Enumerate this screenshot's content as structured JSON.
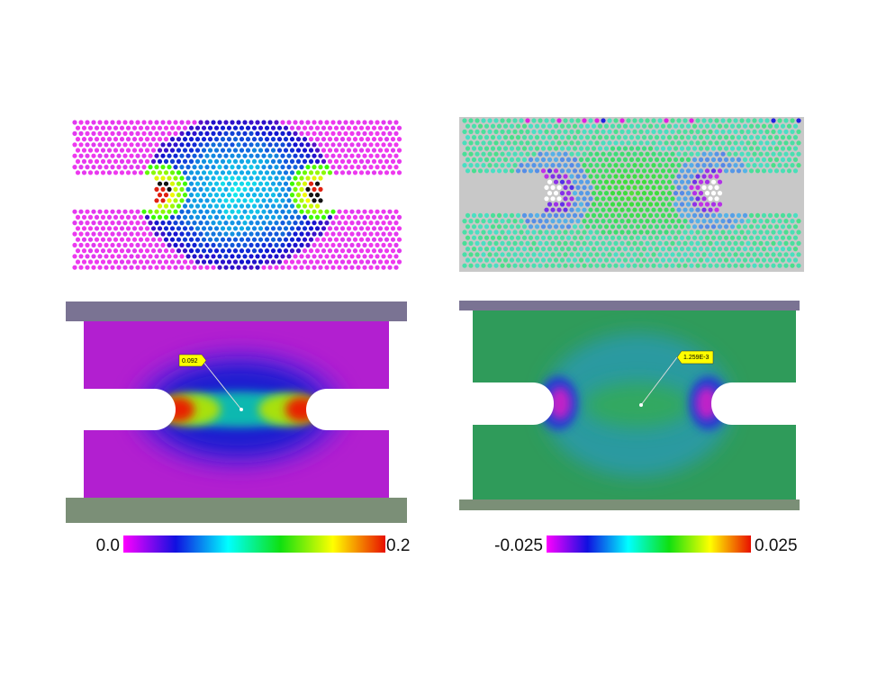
{
  "panels": [
    {
      "annotation": "0.092"
    },
    {
      "annotation": "1.259E-3"
    }
  ],
  "colorbars": [
    {
      "min_label": "0.0",
      "max_label": "0.2"
    },
    {
      "min_label": "-0.025",
      "max_label": "0.025"
    }
  ]
}
